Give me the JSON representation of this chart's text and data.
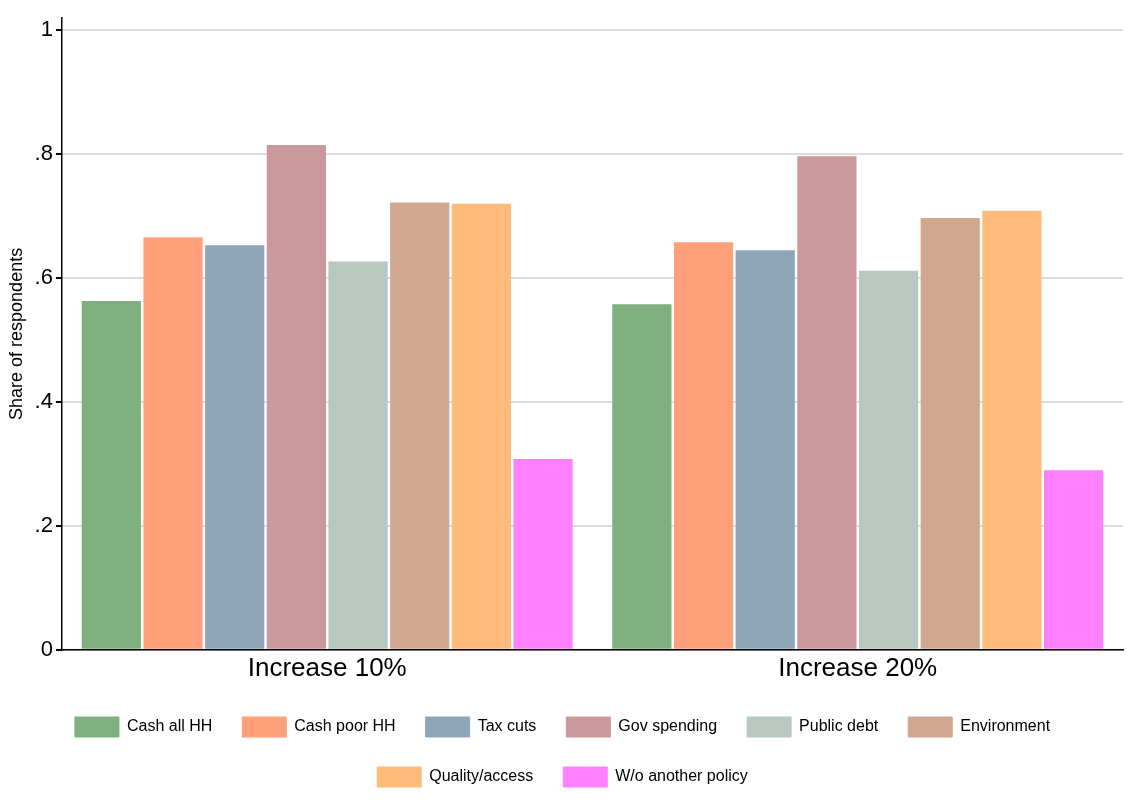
{
  "chart_data": {
    "type": "bar",
    "ylabel": "Share of respondents",
    "categories": [
      "Increase 10%",
      "Increase 20%"
    ],
    "series": [
      {
        "name": "Cash all HH",
        "color": "#80b080",
        "values": [
          0.563,
          0.558
        ]
      },
      {
        "name": "Cash poor HH",
        "color": "#ffa07a",
        "values": [
          0.666,
          0.658
        ]
      },
      {
        "name": "Tax cuts",
        "color": "#8fa5ba",
        "values": [
          0.653,
          0.645
        ]
      },
      {
        "name": "Gov spending",
        "color": "#c9999c",
        "values": [
          0.815,
          0.797
        ]
      },
      {
        "name": "Public debt",
        "color": "#b8c8c0",
        "values": [
          0.627,
          0.612
        ]
      },
      {
        "name": "Environment",
        "color": "#d0a890",
        "values": [
          0.722,
          0.697
        ]
      },
      {
        "name": "Quality/access",
        "color": "#ffbb7a",
        "values": [
          0.72,
          0.709
        ]
      },
      {
        "name": "W/o another policy",
        "color": "#ff80ff",
        "values": [
          0.308,
          0.29
        ]
      }
    ],
    "ylim": [
      0,
      1.02
    ],
    "yticks": [
      0,
      {
        "value": 0.2,
        "label": ".2"
      },
      {
        "value": 0.4,
        "label": ".4"
      },
      {
        "value": 0.6,
        "label": ".6"
      },
      {
        "value": 0.8,
        "label": ".8"
      },
      1
    ],
    "grid": "y",
    "legend": "bottom"
  }
}
